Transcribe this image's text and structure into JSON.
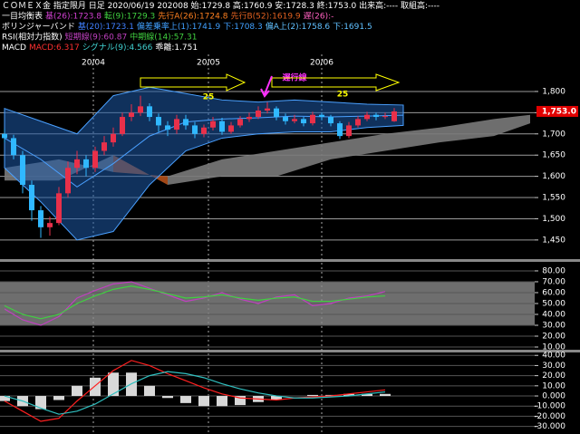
{
  "header": {
    "lines": [
      [
        {
          "text": "ＣＯＭＥＸ金 指定限月 日足 2020/06/19 202008 始:1729.8 高:1760.9 安:1728.3 終:1753.0 出来高:---- 取組高:----",
          "color": "#ffffff"
        }
      ],
      [
        {
          "text": "一目均衡表",
          "color": "#ffffff"
        },
        {
          "text": "基(26):1723.8",
          "color": "#d040d0"
        },
        {
          "text": "転(9):1729.3",
          "color": "#40d040"
        },
        {
          "text": "先行A(26):1724.8",
          "color": "#ff8020"
        },
        {
          "text": "先行B(52):1619.9",
          "color": "#e06020"
        },
        {
          "text": "遅(26):-",
          "color": "#ff60c0"
        }
      ],
      [
        {
          "text": "ボリンジャーバンド",
          "color": "#ffffff"
        },
        {
          "text": "基(20):1723.1",
          "color": "#4080ff"
        },
        {
          "text": "偏差乗率上(1):1741.9",
          "color": "#40a0ff"
        },
        {
          "text": "下:1708.3",
          "color": "#40a0ff"
        },
        {
          "text": "偏A上(2):1758.6",
          "color": "#60c0ff"
        },
        {
          "text": "下:1691.5",
          "color": "#60c0ff"
        }
      ],
      [
        {
          "text": "RSI(相対力指数)",
          "color": "#ffffff"
        },
        {
          "text": "短期線(9):60.87",
          "color": "#c040c0"
        },
        {
          "text": "中期線(14):57.31",
          "color": "#40d040"
        }
      ],
      [
        {
          "text": "MACD",
          "color": "#ffffff"
        },
        {
          "text": "MACD:6.317",
          "color": "#ff3030"
        },
        {
          "text": "シグナル(9):4.566",
          "color": "#40d0d0"
        },
        {
          "text": "乖離:1.751",
          "color": "#ffffff"
        }
      ]
    ]
  },
  "chart_data": [
    {
      "type": "candlestick",
      "xlim": [
        -0.5,
        58.5
      ],
      "ylim": [
        1407,
        1849
      ],
      "yticks": [
        {
          "value": 1450,
          "label": "1,450"
        },
        {
          "value": 1500,
          "label": "1,500"
        },
        {
          "value": 1550,
          "label": "1,550"
        },
        {
          "value": 1600,
          "label": "1,600"
        },
        {
          "value": 1650,
          "label": "1,650"
        },
        {
          "value": 1700,
          "label": "1,700"
        },
        {
          "value": 1750,
          "label": "1,750"
        },
        {
          "value": 1800,
          "label": "1,800"
        }
      ],
      "x_labels": [
        {
          "value": 9.8,
          "label": "20/04"
        },
        {
          "value": 22.5,
          "label": "20/05"
        },
        {
          "value": 35,
          "label": "20/06"
        }
      ],
      "grid": true,
      "up_color": "#e8304a",
      "down_color": "#30b8ff",
      "open": [
        1700,
        1690,
        1650,
        1580,
        1520,
        1480,
        1490,
        1560,
        1620,
        1640,
        1620,
        1660,
        1680,
        1700,
        1740,
        1750,
        1765,
        1740,
        1720,
        1710,
        1735,
        1720,
        1700,
        1715,
        1730,
        1705,
        1720,
        1735,
        1740,
        1755,
        1760,
        1740,
        1730,
        1735,
        1725,
        1745,
        1740,
        1725,
        1695,
        1720,
        1735,
        1745,
        1740,
        1729.8
      ],
      "high": [
        1712,
        1698,
        1660,
        1590,
        1530,
        1505,
        1575,
        1635,
        1660,
        1650,
        1670,
        1695,
        1715,
        1750,
        1770,
        1790,
        1772,
        1748,
        1730,
        1745,
        1745,
        1728,
        1722,
        1740,
        1738,
        1728,
        1742,
        1750,
        1765,
        1775,
        1765,
        1748,
        1745,
        1740,
        1752,
        1750,
        1745,
        1730,
        1728,
        1742,
        1752,
        1750,
        1750,
        1760.9
      ],
      "low": [
        1680,
        1640,
        1560,
        1495,
        1455,
        1460,
        1485,
        1550,
        1605,
        1600,
        1610,
        1650,
        1670,
        1695,
        1730,
        1742,
        1730,
        1705,
        1695,
        1700,
        1710,
        1690,
        1692,
        1708,
        1698,
        1700,
        1715,
        1728,
        1735,
        1748,
        1732,
        1722,
        1725,
        1718,
        1720,
        1732,
        1718,
        1688,
        1690,
        1715,
        1730,
        1732,
        1735,
        1728.3
      ],
      "close": [
        1690,
        1650,
        1580,
        1520,
        1480,
        1490,
        1560,
        1620,
        1640,
        1620,
        1660,
        1680,
        1700,
        1740,
        1750,
        1765,
        1740,
        1720,
        1710,
        1735,
        1720,
        1700,
        1715,
        1730,
        1705,
        1720,
        1735,
        1740,
        1755,
        1760,
        1740,
        1730,
        1735,
        1725,
        1745,
        1740,
        1725,
        1695,
        1720,
        1735,
        1745,
        1740,
        1742,
        1753
      ],
      "bands": {
        "color": "#1e5aa8",
        "line_color": "#4aa0ff",
        "x": [
          0,
          4,
          8,
          12,
          16,
          20,
          24,
          28,
          32,
          36,
          40,
          44
        ],
        "upper": [
          1760,
          1730,
          1700,
          1790,
          1810,
          1795,
          1780,
          1775,
          1780,
          1775,
          1770,
          1768
        ],
        "lower": [
          1620,
          1540,
          1450,
          1470,
          1580,
          1660,
          1690,
          1700,
          1705,
          1705,
          1715,
          1720
        ],
        "mid": [
          1690,
          1640,
          1575,
          1630,
          1695,
          1728,
          1735,
          1738,
          1742,
          1740,
          1742,
          1744
        ]
      },
      "cloud": {
        "up_color": "#7a7a7a",
        "down_color": "#b4501a",
        "x": [
          0,
          6,
          12,
          18,
          24,
          30,
          36,
          42,
          48,
          54,
          58
        ],
        "span_a": [
          1620,
          1640,
          1610,
          1600,
          1640,
          1660,
          1680,
          1700,
          1715,
          1735,
          1745
        ],
        "span_b": [
          1590,
          1590,
          1650,
          1580,
          1600,
          1600,
          1640,
          1660,
          1680,
          1695,
          1725
        ]
      },
      "last_price": {
        "value": 1753,
        "label": "1,753.0"
      },
      "annotations": [
        {
          "text": "25",
          "color": "#ffff00"
        },
        {
          "text": "遅行線",
          "color": "#ff30ff"
        },
        {
          "text": "25",
          "color": "#ffff00"
        }
      ]
    },
    {
      "type": "line",
      "xlim": [
        -0.5,
        58.5
      ],
      "ylim": [
        7.5,
        88.3
      ],
      "yticks": [
        {
          "value": 10,
          "label": "10.00"
        },
        {
          "value": 20,
          "label": "20.00"
        },
        {
          "value": 30,
          "label": "30.00"
        },
        {
          "value": 40,
          "label": "40.00"
        },
        {
          "value": 50,
          "label": "50.00"
        },
        {
          "value": 60,
          "label": "60.00"
        },
        {
          "value": 70,
          "label": "70.00"
        },
        {
          "value": 80,
          "label": "80.00"
        }
      ],
      "shade": [
        30,
        70
      ],
      "shade_color": "#8a8a8a",
      "x": [
        0,
        2,
        4,
        6,
        8,
        10,
        12,
        14,
        16,
        18,
        20,
        22,
        24,
        26,
        28,
        30,
        32,
        34,
        36,
        38,
        40,
        42
      ],
      "series": [
        {
          "color": "#c040c0",
          "values": [
            45,
            35,
            30,
            38,
            55,
            62,
            68,
            70,
            64,
            58,
            52,
            55,
            60,
            54,
            50,
            56,
            58,
            48,
            50,
            55,
            57,
            61
          ]
        },
        {
          "color": "#40d040",
          "values": [
            48,
            40,
            36,
            40,
            50,
            57,
            63,
            66,
            63,
            59,
            55,
            56,
            58,
            55,
            53,
            55,
            56,
            52,
            52,
            54,
            56,
            57
          ]
        }
      ]
    },
    {
      "type": "line",
      "xlim": [
        -0.5,
        58.5
      ],
      "ylim": [
        -37.5,
        42
      ],
      "yticks": [
        {
          "value": -30,
          "label": "-30.000"
        },
        {
          "value": -20,
          "label": "-20.000"
        },
        {
          "value": -10,
          "label": "-10.000"
        },
        {
          "value": 0,
          "label": "0.000"
        },
        {
          "value": 10,
          "label": "10.00"
        },
        {
          "value": 20,
          "label": "20.00"
        },
        {
          "value": 30,
          "label": "30.00"
        },
        {
          "value": 40,
          "label": "40.00"
        }
      ],
      "x": [
        0,
        2,
        4,
        6,
        8,
        10,
        12,
        14,
        16,
        18,
        20,
        22,
        24,
        26,
        28,
        30,
        32,
        34,
        36,
        38,
        40,
        42
      ],
      "series": [
        {
          "type": "bar",
          "color": "#d8d8d8",
          "values": [
            -5,
            -10,
            -13,
            -4,
            10,
            18,
            23,
            23,
            10,
            -2,
            -7,
            -10,
            -10,
            -9,
            -6,
            -4,
            0,
            1,
            1,
            2,
            2,
            2
          ]
        },
        {
          "type": "line",
          "color": "#ff2020",
          "values": [
            -5,
            -15,
            -25,
            -22,
            -5,
            10,
            25,
            35,
            30,
            22,
            15,
            8,
            2,
            -2,
            -3,
            -4,
            -2,
            -1,
            0,
            2,
            4,
            6
          ]
        },
        {
          "type": "line",
          "color": "#30c0c0",
          "values": [
            0,
            -5,
            -12,
            -18,
            -15,
            -8,
            2,
            12,
            20,
            24,
            22,
            18,
            12,
            7,
            3,
            0,
            -2,
            -2,
            -1,
            0,
            2,
            4
          ]
        }
      ]
    }
  ]
}
